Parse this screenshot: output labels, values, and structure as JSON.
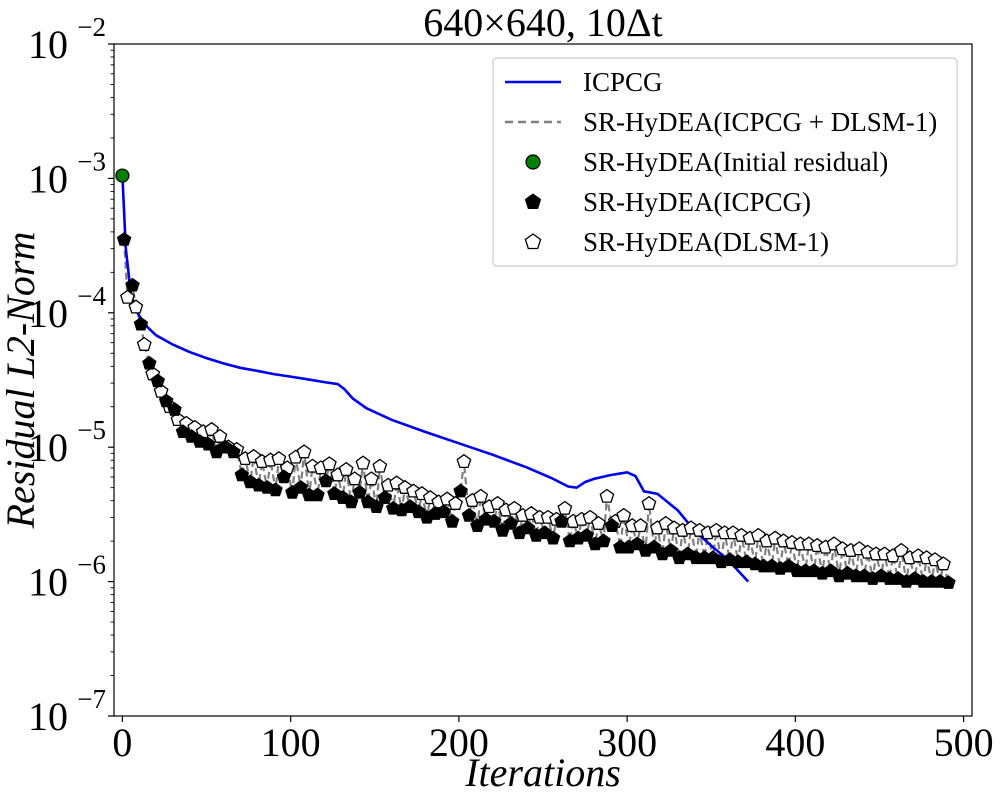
{
  "chart_data": {
    "type": "line",
    "title": "640×640, 10Δt",
    "xlabel": "Iterations",
    "ylabel": "Residual L2-Norm",
    "xlim": [
      -5,
      505
    ],
    "ylim_exponents": [
      -7,
      -2
    ],
    "yscale": "log",
    "x_ticks": [
      0,
      100,
      200,
      300,
      400,
      500
    ],
    "y_tick_exponents": [
      -7,
      -6,
      -5,
      -4,
      -3,
      -2
    ],
    "y_tick_base": "10",
    "legend_position": "top-right",
    "colors": {
      "icpcg": "#0000ee",
      "hybrid": "#808080",
      "initial": "#008000",
      "icpcg_marker": "#000000",
      "dlsm_marker": "#ffffff"
    },
    "series": [
      {
        "name": "ICPCG",
        "style": "solid",
        "x": [
          0,
          2,
          5,
          8,
          10,
          15,
          20,
          30,
          40,
          50,
          60,
          70,
          80,
          90,
          100,
          110,
          120,
          128,
          132,
          137,
          145,
          160,
          180,
          200,
          220,
          240,
          255,
          265,
          270,
          275,
          280,
          290,
          300,
          305,
          310,
          318,
          330,
          340,
          350,
          360,
          372
        ],
        "y": [
          0.00105,
          0.0003,
          0.00014,
          0.000105,
          9.5e-05,
          7.8e-05,
          6.8e-05,
          5.8e-05,
          5.1e-05,
          4.6e-05,
          4.2e-05,
          3.9e-05,
          3.7e-05,
          3.5e-05,
          3.35e-05,
          3.2e-05,
          3.05e-05,
          2.95e-05,
          2.7e-05,
          2.3e-05,
          1.95e-05,
          1.6e-05,
          1.3e-05,
          1.07e-05,
          8.8e-06,
          7.1e-06,
          5.9e-06,
          5.1e-06,
          5e-06,
          5.5e-06,
          5.8e-06,
          6.2e-06,
          6.5e-06,
          6.1e-06,
          4.7e-06,
          4.5e-06,
          3.4e-06,
          2.4e-06,
          1.85e-06,
          1.45e-06,
          1e-06
        ]
      },
      {
        "name": "SR-HyDEA(ICPCG + DLSM-1)",
        "style": "dashed",
        "x": [
          0,
          2,
          5,
          8,
          10,
          15,
          20,
          30,
          40,
          50,
          60,
          70,
          80,
          100,
          120,
          140,
          160,
          180,
          200,
          220,
          240,
          260,
          280,
          300,
          320,
          340,
          360,
          380,
          400,
          420,
          440,
          460,
          480,
          492
        ],
        "y": [
          0.00105,
          0.00035,
          0.00016,
          9e-05,
          6.5e-05,
          3.8e-05,
          2.4e-05,
          1.6e-05,
          1.3e-05,
          1.1e-05,
          9.5e-06,
          7.5e-06,
          6.5e-06,
          6e-06,
          5.7e-06,
          5.2e-06,
          5.5e-06,
          4.6e-06,
          4.4e-06,
          4e-06,
          3.2e-06,
          2.9e-06,
          2.8e-06,
          2.5e-06,
          2.3e-06,
          2e-06,
          1.8e-06,
          1.75e-06,
          1.6e-06,
          1.5e-06,
          1.45e-06,
          1.35e-06,
          1.3e-06,
          1.15e-06
        ]
      },
      {
        "name": "SR-HyDEA(Initial residual)",
        "marker": "circle",
        "x": [
          0
        ],
        "y": [
          0.00105
        ]
      },
      {
        "name": "SR-HyDEA(ICPCG)",
        "marker": "filled-pentagon",
        "x_start": 1,
        "x_end": 491,
        "x_step": 5,
        "y": [
          0.00035,
          0.00016,
          8.2e-05,
          4.2e-05,
          3.1e-05,
          2.2e-05,
          1.9e-05,
          1.3e-05,
          1.2e-05,
          1.1e-05,
          1.05e-05,
          9.2e-06,
          1e-05,
          9.2e-06,
          6.2e-06,
          5.5e-06,
          5.2e-06,
          5e-06,
          4.8e-06,
          6e-06,
          4.6e-06,
          5e-06,
          4.4e-06,
          4.4e-06,
          5.6e-06,
          4.5e-06,
          4.2e-06,
          3.9e-06,
          4.6e-06,
          3.9e-06,
          3.6e-06,
          4.2e-06,
          3.5e-06,
          3.4e-06,
          3.6e-06,
          3.3e-06,
          3e-06,
          3.2e-06,
          3.3e-06,
          2.8e-06,
          4.7e-06,
          3.1e-06,
          2.6e-06,
          2.9e-06,
          2.8e-06,
          2.4e-06,
          2.7e-06,
          2.3e-06,
          2.5e-06,
          2.2e-06,
          2.3e-06,
          2.1e-06,
          2.8e-06,
          2e-06,
          2.1e-06,
          2.2e-06,
          1.9e-06,
          2e-06,
          2.6e-06,
          1.8e-06,
          1.8e-06,
          1.9e-06,
          1.7e-06,
          1.8e-06,
          1.6e-06,
          1.7e-06,
          1.5e-06,
          1.6e-06,
          1.5e-06,
          1.5e-06,
          1.5e-06,
          1.4e-06,
          1.45e-06,
          1.4e-06,
          1.4e-06,
          1.35e-06,
          1.3e-06,
          1.3e-06,
          1.25e-06,
          1.3e-06,
          1.2e-06,
          1.2e-06,
          1.2e-06,
          1.15e-06,
          1.2e-06,
          1.1e-06,
          1.15e-06,
          1.1e-06,
          1.1e-06,
          1.05e-06,
          1.1e-06,
          1.05e-06,
          1.05e-06,
          1e-06,
          1.05e-06,
          1e-06,
          1e-06,
          1e-06,
          9.8e-07
        ]
      },
      {
        "name": "SR-HyDEA(DLSM-1)",
        "marker": "open-pentagon",
        "x_start": 3,
        "x_end": 488,
        "x_step": 5,
        "y": [
          0.00013,
          0.00011,
          5.8e-05,
          3.5e-05,
          2.6e-05,
          2e-05,
          1.6e-05,
          1.5e-05,
          1.4e-05,
          1.3e-05,
          1.35e-05,
          1.2e-05,
          1e-05,
          9.6e-06,
          8.2e-06,
          8.5e-06,
          7.8e-06,
          8e-06,
          8.2e-06,
          7e-06,
          8.4e-06,
          9.2e-06,
          7.2e-06,
          7e-06,
          7.5e-06,
          6.2e-06,
          6.8e-06,
          5.8e-06,
          7.6e-06,
          5.8e-06,
          7.2e-06,
          5.2e-06,
          5.4e-06,
          5e-06,
          4.7e-06,
          4.5e-06,
          4.2e-06,
          3.9e-06,
          4.1e-06,
          3.8e-06,
          7.8e-06,
          4e-06,
          4.3e-06,
          3.6e-06,
          3.8e-06,
          3.4e-06,
          3.5e-06,
          3.1e-06,
          3.2e-06,
          3e-06,
          3e-06,
          2.9e-06,
          3.5e-06,
          2.8e-06,
          2.9e-06,
          3e-06,
          2.7e-06,
          4.3e-06,
          2.8e-06,
          3.1e-06,
          2.6e-06,
          2.6e-06,
          3.8e-06,
          2.5e-06,
          2.7e-06,
          2.5e-06,
          2.4e-06,
          2.5e-06,
          2.4e-06,
          2.3e-06,
          2.4e-06,
          2.3e-06,
          2.3e-06,
          2.2e-06,
          2.1e-06,
          2.2e-06,
          2e-06,
          2.1e-06,
          2e-06,
          1.95e-06,
          1.9e-06,
          1.9e-06,
          1.85e-06,
          1.8e-06,
          1.9e-06,
          1.75e-06,
          1.7e-06,
          1.75e-06,
          1.65e-06,
          1.6e-06,
          1.6e-06,
          1.55e-06,
          1.7e-06,
          1.5e-06,
          1.55e-06,
          1.5e-06,
          1.45e-06,
          1.35e-06
        ]
      }
    ]
  }
}
